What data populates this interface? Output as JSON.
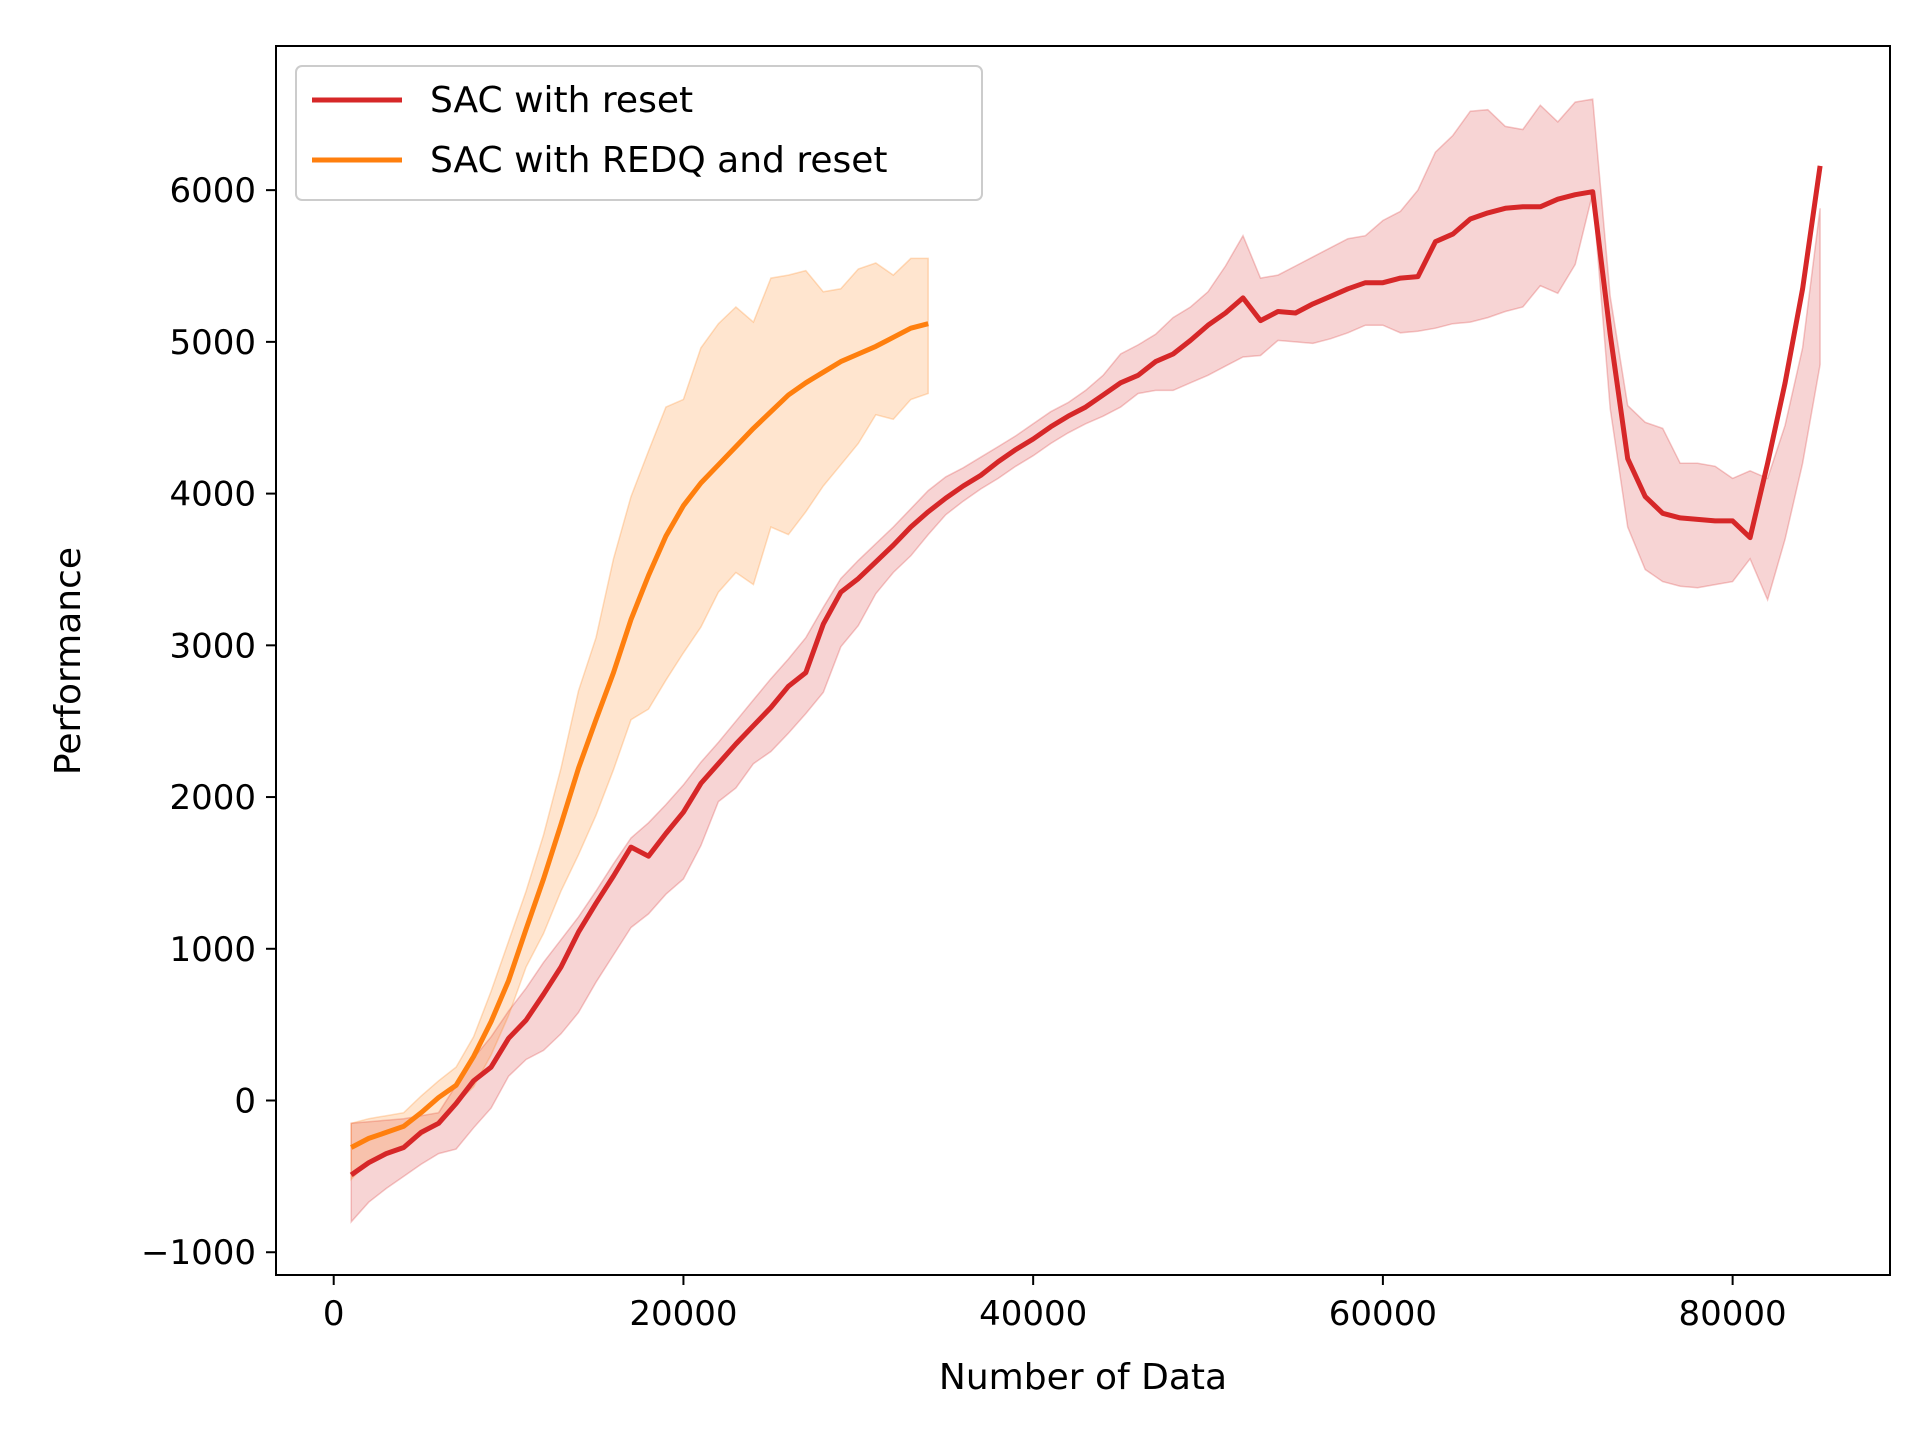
{
  "chart_data": {
    "type": "line",
    "title": "",
    "xlabel": "Number of Data",
    "ylabel": "Performance",
    "xlim": [
      -3300,
      89000
    ],
    "ylim": [
      -1150,
      6950
    ],
    "xticks": [
      0,
      20000,
      40000,
      60000,
      80000
    ],
    "yticks": [
      -1000,
      0,
      1000,
      2000,
      3000,
      4000,
      5000,
      6000
    ],
    "xtick_labels": [
      "0",
      "20000",
      "40000",
      "60000",
      "80000"
    ],
    "ytick_labels": [
      "−1000",
      "0",
      "1000",
      "2000",
      "3000",
      "4000",
      "5000",
      "6000"
    ],
    "grid": false,
    "legend_position": "upper-left",
    "series": [
      {
        "name": "SAC with reset",
        "color": "#d62728",
        "x": [
          1000,
          2000,
          3000,
          4000,
          5000,
          6000,
          7000,
          8000,
          9000,
          10000,
          11000,
          12000,
          13000,
          14000,
          15000,
          16000,
          17000,
          18000,
          19000,
          20000,
          21000,
          22000,
          23000,
          24000,
          25000,
          26000,
          27000,
          28000,
          29000,
          30000,
          31000,
          32000,
          33000,
          34000,
          35000,
          36000,
          37000,
          38000,
          39000,
          40000,
          41000,
          42000,
          43000,
          44000,
          45000,
          46000,
          47000,
          48000,
          49000,
          50000,
          51000,
          52000,
          53000,
          54000,
          55000,
          56000,
          57000,
          58000,
          59000,
          60000,
          61000,
          62000,
          63000,
          64000,
          65000,
          66000,
          67000,
          68000,
          69000,
          70000,
          71000,
          72000,
          73000,
          74000,
          75000,
          76000,
          77000,
          78000,
          79000,
          80000,
          81000,
          82000,
          83000,
          84000,
          85000
        ],
        "y": [
          -490,
          -410,
          -350,
          -310,
          -210,
          -150,
          -20,
          130,
          220,
          410,
          530,
          700,
          880,
          1110,
          1300,
          1480,
          1670,
          1610,
          1760,
          1900,
          2090,
          2220,
          2350,
          2470,
          2590,
          2730,
          2820,
          3140,
          3350,
          3440,
          3550,
          3660,
          3780,
          3880,
          3970,
          4050,
          4120,
          4210,
          4290,
          4360,
          4440,
          4510,
          4570,
          4650,
          4730,
          4780,
          4870,
          4920,
          5010,
          5110,
          5190,
          5290,
          5140,
          5200,
          5190,
          5250,
          5300,
          5350,
          5390,
          5390,
          5420,
          5430,
          5660,
          5710,
          5810,
          5850,
          5880,
          5890,
          5890,
          5940,
          5970,
          5990,
          5050,
          4230,
          3980,
          3870,
          3840,
          3830,
          3820,
          3820,
          3710,
          4200,
          4730,
          5350,
          6160
        ],
        "lower": [
          -800,
          -670,
          -580,
          -500,
          -420,
          -350,
          -320,
          -180,
          -50,
          160,
          270,
          330,
          440,
          580,
          780,
          960,
          1140,
          1230,
          1360,
          1460,
          1680,
          1970,
          2060,
          2220,
          2300,
          2420,
          2550,
          2690,
          2990,
          3130,
          3340,
          3480,
          3590,
          3730,
          3860,
          3950,
          4030,
          4100,
          4180,
          4250,
          4330,
          4400,
          4460,
          4510,
          4570,
          4660,
          4680,
          4680,
          4730,
          4780,
          4840,
          4900,
          4910,
          5010,
          5000,
          4990,
          5020,
          5060,
          5110,
          5110,
          5060,
          5070,
          5090,
          5120,
          5130,
          5160,
          5200,
          5230,
          5370,
          5320,
          5510,
          5980,
          4560,
          3780,
          3500,
          3420,
          3390,
          3380,
          3400,
          3420,
          3570,
          3300,
          3700,
          4200,
          4850
        ],
        "upper": [
          -150,
          -140,
          -130,
          -120,
          -100,
          -80,
          100,
          280,
          420,
          590,
          740,
          910,
          1060,
          1210,
          1380,
          1560,
          1730,
          1830,
          1950,
          2080,
          2230,
          2360,
          2500,
          2640,
          2780,
          2910,
          3050,
          3250,
          3440,
          3560,
          3670,
          3780,
          3900,
          4020,
          4110,
          4170,
          4240,
          4310,
          4380,
          4460,
          4540,
          4600,
          4680,
          4780,
          4920,
          4980,
          5050,
          5160,
          5230,
          5330,
          5500,
          5700,
          5420,
          5440,
          5500,
          5560,
          5620,
          5680,
          5700,
          5800,
          5860,
          6000,
          6250,
          6360,
          6520,
          6530,
          6420,
          6400,
          6560,
          6450,
          6580,
          6600,
          5300,
          4580,
          4470,
          4430,
          4200,
          4200,
          4180,
          4100,
          4150,
          4100,
          4450,
          4960,
          5880
        ]
      },
      {
        "name": "SAC with REDQ and reset",
        "color": "#ff7f0e",
        "x": [
          1000,
          2000,
          3000,
          4000,
          5000,
          6000,
          7000,
          8000,
          9000,
          10000,
          11000,
          12000,
          13000,
          14000,
          15000,
          16000,
          17000,
          18000,
          19000,
          20000,
          21000,
          22000,
          23000,
          24000,
          25000,
          26000,
          27000,
          28000,
          29000,
          30000,
          31000,
          32000,
          33000,
          34000
        ],
        "y": [
          -310,
          -250,
          -210,
          -170,
          -80,
          20,
          100,
          290,
          520,
          790,
          1130,
          1460,
          1820,
          2190,
          2510,
          2820,
          3170,
          3460,
          3720,
          3920,
          4070,
          4190,
          4310,
          4430,
          4540,
          4650,
          4730,
          4800,
          4870,
          4920,
          4970,
          5030,
          5090,
          5120
        ],
        "lower": [
          -520,
          -400,
          -340,
          -300,
          -230,
          -150,
          -20,
          90,
          300,
          560,
          880,
          1100,
          1380,
          1620,
          1880,
          2180,
          2510,
          2580,
          2770,
          2950,
          3120,
          3350,
          3480,
          3400,
          3780,
          3730,
          3880,
          4050,
          4190,
          4330,
          4520,
          4490,
          4620,
          4660
        ],
        "upper": [
          -150,
          -120,
          -100,
          -80,
          30,
          130,
          220,
          420,
          720,
          1050,
          1380,
          1750,
          2190,
          2700,
          3050,
          3570,
          3980,
          4280,
          4570,
          4620,
          4960,
          5120,
          5230,
          5130,
          5420,
          5440,
          5470,
          5330,
          5350,
          5480,
          5520,
          5440,
          5550,
          5550
        ]
      }
    ]
  }
}
